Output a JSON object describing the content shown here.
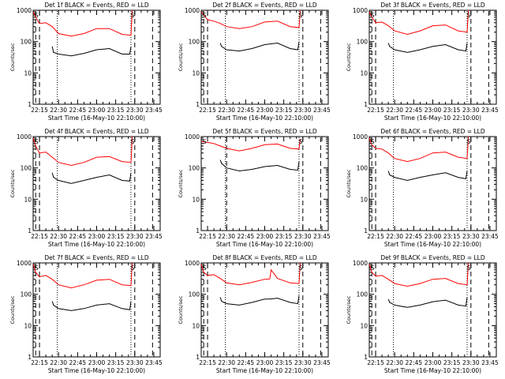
{
  "colors": {
    "background": "#ffffff",
    "axis": "#000000",
    "events": "#000000",
    "lld": "#ff0000"
  },
  "chart_data": [
    {
      "type": "line",
      "title": "Det 1f BLACK = Events, RED = LLD",
      "xlabel": "Start Time (16-May-10 22:10:00)",
      "ylabel": "Counts/sec",
      "x_ticks": [
        "22:15",
        "22:30",
        "22:45",
        "23:00",
        "23:15",
        "23:30",
        "23:45"
      ],
      "y_scale": "log",
      "ylim": [
        1,
        1000
      ],
      "y_ticks": [
        "1",
        "10",
        "100",
        "1000"
      ],
      "xlim": [
        "22:10",
        "23:50"
      ],
      "markers": [
        "S",
        "S"
      ],
      "dashed_lines": [
        "22:12",
        "22:15",
        "23:30",
        "23:44"
      ],
      "dotted_lines": [
        "22:29",
        "23:27"
      ],
      "series": [
        {
          "color": "red",
          "x": [
            "22:10",
            "22:12",
            "22:15",
            "22:20",
            "22:25",
            "22:30",
            "22:40",
            "22:50",
            "23:00",
            "23:10",
            "23:20",
            "23:27",
            "23:28"
          ],
          "y": [
            900,
            600,
            380,
            400,
            300,
            180,
            150,
            180,
            260,
            260,
            170,
            160,
            1000
          ]
        },
        {
          "color": "black",
          "x": [
            "22:25",
            "22:26",
            "22:30",
            "22:40",
            "22:50",
            "23:00",
            "23:10",
            "23:20",
            "23:26",
            "23:27"
          ],
          "y": [
            70,
            45,
            40,
            35,
            42,
            55,
            60,
            40,
            40,
            70
          ]
        }
      ]
    },
    {
      "type": "line",
      "title": "Det 2f BLACK = Events, RED = LLD",
      "xlabel": "Start Time (16-May-10 22:10:00)",
      "ylabel": "Counts/sec",
      "x_ticks": [
        "22:15",
        "22:30",
        "22:45",
        "23:00",
        "23:15",
        "23:30",
        "23:45"
      ],
      "y_scale": "log",
      "ylim": [
        1,
        1000
      ],
      "y_ticks": [
        "1",
        "10",
        "100",
        "1000"
      ],
      "xlim": [
        "22:10",
        "23:50"
      ],
      "markers": [
        "S",
        "S"
      ],
      "dashed_lines": [
        "22:12",
        "22:15",
        "23:30",
        "23:44"
      ],
      "dotted_lines": [
        "22:29",
        "23:27"
      ],
      "series": [
        {
          "color": "red",
          "x": [
            "22:10",
            "22:12",
            "22:15",
            "22:20",
            "22:25",
            "22:30",
            "22:40",
            "22:50",
            "23:00",
            "23:10",
            "23:20",
            "23:27",
            "23:28"
          ],
          "y": [
            900,
            700,
            500,
            450,
            380,
            300,
            260,
            300,
            420,
            450,
            300,
            280,
            1000
          ]
        },
        {
          "color": "black",
          "x": [
            "22:25",
            "22:26",
            "22:30",
            "22:40",
            "22:50",
            "23:00",
            "23:10",
            "23:20",
            "23:26",
            "23:27"
          ],
          "y": [
            90,
            70,
            55,
            50,
            60,
            80,
            90,
            60,
            55,
            100
          ]
        }
      ]
    },
    {
      "type": "line",
      "title": "Det 3f BLACK = Events, RED = LLD",
      "xlabel": "Start Time (16-May-10 22:10:00)",
      "ylabel": "Counts/sec",
      "x_ticks": [
        "22:15",
        "22:30",
        "22:45",
        "23:00",
        "23:15",
        "23:30",
        "23:45"
      ],
      "y_scale": "log",
      "ylim": [
        1,
        1000
      ],
      "y_ticks": [
        "1",
        "10",
        "100",
        "1000"
      ],
      "xlim": [
        "22:10",
        "23:50"
      ],
      "markers": [
        "S",
        "S"
      ],
      "dashed_lines": [
        "22:12",
        "22:15",
        "23:30",
        "23:44"
      ],
      "dotted_lines": [
        "22:29",
        "23:27"
      ],
      "series": [
        {
          "color": "red",
          "x": [
            "22:10",
            "22:12",
            "22:15",
            "22:20",
            "22:25",
            "22:30",
            "22:40",
            "22:50",
            "23:00",
            "23:10",
            "23:20",
            "23:27",
            "23:28"
          ],
          "y": [
            900,
            600,
            400,
            420,
            320,
            220,
            170,
            220,
            320,
            340,
            220,
            200,
            1000
          ]
        },
        {
          "color": "black",
          "x": [
            "22:25",
            "22:26",
            "22:30",
            "22:40",
            "22:50",
            "23:00",
            "23:10",
            "23:20",
            "23:26",
            "23:27"
          ],
          "y": [
            90,
            70,
            55,
            45,
            55,
            70,
            80,
            55,
            50,
            90
          ]
        }
      ]
    },
    {
      "type": "line",
      "title": "Det 4f BLACK = Events, RED = LLD",
      "xlabel": "Start Time (16-May-10 22:10:00)",
      "ylabel": "Counts/sec",
      "x_ticks": [
        "22:15",
        "22:30",
        "22:45",
        "23:00",
        "23:15",
        "23:30",
        "23:45"
      ],
      "y_scale": "log",
      "ylim": [
        1,
        1000
      ],
      "y_ticks": [
        "1",
        "10",
        "100",
        "1000"
      ],
      "xlim": [
        "22:10",
        "23:50"
      ],
      "markers": [
        "S",
        "S"
      ],
      "dashed_lines": [
        "22:12",
        "22:15",
        "23:30",
        "23:44"
      ],
      "dotted_lines": [
        "22:29",
        "23:27"
      ],
      "series": [
        {
          "color": "red",
          "x": [
            "22:10",
            "22:12",
            "22:15",
            "22:20",
            "22:25",
            "22:30",
            "22:40",
            "22:50",
            "23:00",
            "23:10",
            "23:20",
            "23:27",
            "23:28"
          ],
          "y": [
            900,
            500,
            300,
            320,
            220,
            150,
            120,
            150,
            220,
            230,
            160,
            150,
            1000
          ]
        },
        {
          "color": "black",
          "x": [
            "22:25",
            "22:26",
            "22:30",
            "22:40",
            "22:50",
            "23:00",
            "23:10",
            "23:20",
            "23:26",
            "23:27"
          ],
          "y": [
            70,
            50,
            40,
            32,
            40,
            50,
            60,
            40,
            38,
            70
          ]
        }
      ]
    },
    {
      "type": "line",
      "title": "Det 5f BLACK = Events, RED = LLD",
      "xlabel": "Start Time (16-May-10 22:10:00)",
      "ylabel": "Counts/sec",
      "x_ticks": [
        "22:15",
        "22:30",
        "22:45",
        "23:00",
        "23:15",
        "23:30",
        "23:45"
      ],
      "y_scale": "log",
      "ylim": [
        1,
        1000
      ],
      "y_ticks": [
        "1",
        "10",
        "100",
        "1000"
      ],
      "xlim": [
        "22:10",
        "23:50"
      ],
      "markers": [
        "S",
        "S"
      ],
      "dashed_lines": [
        "22:30",
        "23:30",
        "23:44"
      ],
      "dotted_lines": [
        "22:29",
        "23:27"
      ],
      "series": [
        {
          "color": "red",
          "x": [
            "22:10",
            "22:15",
            "22:20",
            "22:25",
            "22:30",
            "22:40",
            "22:50",
            "23:00",
            "23:10",
            "23:20",
            "23:27",
            "23:28"
          ],
          "y": [
            700,
            650,
            600,
            500,
            420,
            350,
            420,
            550,
            580,
            420,
            400,
            800
          ]
        },
        {
          "color": "black",
          "x": [
            "22:25",
            "22:26",
            "22:30",
            "22:40",
            "22:50",
            "23:00",
            "23:10",
            "23:20",
            "23:26",
            "23:27"
          ],
          "y": [
            180,
            140,
            100,
            80,
            90,
            110,
            120,
            90,
            85,
            160
          ]
        }
      ]
    },
    {
      "type": "line",
      "title": "Det 6f BLACK = Events, RED = LLD",
      "xlabel": "Start Time (16-May-10 22:10:00)",
      "ylabel": "Counts/sec",
      "x_ticks": [
        "22:15",
        "22:30",
        "22:45",
        "23:00",
        "23:15",
        "23:30",
        "23:45"
      ],
      "y_scale": "log",
      "ylim": [
        1,
        1000
      ],
      "y_ticks": [
        "1",
        "10",
        "100",
        "1000"
      ],
      "xlim": [
        "22:10",
        "23:50"
      ],
      "markers": [
        "S",
        "S"
      ],
      "dashed_lines": [
        "22:12",
        "22:15",
        "23:30",
        "23:44"
      ],
      "dotted_lines": [
        "22:29",
        "23:27"
      ],
      "series": [
        {
          "color": "red",
          "x": [
            "22:10",
            "22:12",
            "22:15",
            "22:20",
            "22:25",
            "22:30",
            "22:40",
            "22:50",
            "23:00",
            "23:10",
            "23:20",
            "23:27",
            "23:28"
          ],
          "y": [
            900,
            550,
            420,
            400,
            300,
            200,
            160,
            200,
            300,
            320,
            220,
            200,
            1000
          ]
        },
        {
          "color": "black",
          "x": [
            "22:25",
            "22:26",
            "22:30",
            "22:40",
            "22:50",
            "23:00",
            "23:10",
            "23:20",
            "23:26",
            "23:27"
          ],
          "y": [
            80,
            60,
            50,
            40,
            50,
            60,
            70,
            50,
            45,
            80
          ]
        }
      ]
    },
    {
      "type": "line",
      "title": "Det 7f BLACK = Events, RED = LLD",
      "xlabel": "Start Time (16-May-10 22:10:00)",
      "ylabel": "Counts/sec",
      "x_ticks": [
        "22:15",
        "22:30",
        "22:45",
        "23:00",
        "23:15",
        "23:30",
        "23:45"
      ],
      "y_scale": "log",
      "ylim": [
        1,
        1000
      ],
      "y_ticks": [
        "1",
        "10",
        "100",
        "1000"
      ],
      "xlim": [
        "22:10",
        "23:50"
      ],
      "markers": [
        "S",
        "S"
      ],
      "dashed_lines": [
        "22:12",
        "22:15",
        "23:30",
        "23:44"
      ],
      "dotted_lines": [
        "22:29",
        "23:27"
      ],
      "series": [
        {
          "color": "red",
          "x": [
            "22:10",
            "22:12",
            "22:15",
            "22:20",
            "22:25",
            "22:30",
            "22:40",
            "22:50",
            "23:00",
            "23:10",
            "23:20",
            "23:27",
            "23:28"
          ],
          "y": [
            900,
            500,
            360,
            400,
            300,
            200,
            160,
            200,
            280,
            300,
            200,
            190,
            1000
          ]
        },
        {
          "color": "black",
          "x": [
            "22:25",
            "22:26",
            "22:30",
            "22:40",
            "22:50",
            "23:00",
            "23:10",
            "23:20",
            "23:26",
            "23:27"
          ],
          "y": [
            60,
            45,
            35,
            30,
            35,
            45,
            50,
            35,
            32,
            60
          ]
        }
      ]
    },
    {
      "type": "line",
      "title": "Det 8f BLACK = Events, RED = LLD",
      "xlabel": "Start Time (16-May-10 22:10:00)",
      "ylabel": "Counts/sec",
      "x_ticks": [
        "22:15",
        "22:30",
        "22:45",
        "23:00",
        "23:15",
        "23:30",
        "23:45"
      ],
      "y_scale": "log",
      "ylim": [
        1,
        1000
      ],
      "y_ticks": [
        "1",
        "10",
        "100",
        "1000"
      ],
      "xlim": [
        "22:10",
        "23:50"
      ],
      "markers": [
        "S",
        "S"
      ],
      "dashed_lines": [
        "22:12",
        "22:15",
        "23:30",
        "23:44"
      ],
      "dotted_lines": [
        "22:29",
        "23:27"
      ],
      "series": [
        {
          "color": "red",
          "x": [
            "22:10",
            "22:12",
            "22:15",
            "22:20",
            "22:25",
            "22:30",
            "22:40",
            "22:50",
            "23:00",
            "23:04",
            "23:05",
            "23:10",
            "23:20",
            "23:27",
            "23:28"
          ],
          "y": [
            900,
            500,
            400,
            420,
            320,
            230,
            200,
            240,
            300,
            310,
            600,
            320,
            230,
            220,
            1000
          ]
        },
        {
          "color": "black",
          "x": [
            "22:25",
            "22:26",
            "22:30",
            "22:40",
            "22:50",
            "23:00",
            "23:04",
            "23:10",
            "23:20",
            "23:26",
            "23:27"
          ],
          "y": [
            80,
            60,
            50,
            45,
            55,
            70,
            70,
            75,
            55,
            50,
            90
          ]
        }
      ]
    },
    {
      "type": "line",
      "title": "Det 9f BLACK = Events, RED = LLD",
      "xlabel": "Start Time (16-May-10 22:10:00)",
      "ylabel": "Counts/sec",
      "x_ticks": [
        "22:15",
        "22:30",
        "22:45",
        "23:00",
        "23:15",
        "23:30",
        "23:45"
      ],
      "y_scale": "log",
      "ylim": [
        1,
        1000
      ],
      "y_ticks": [
        "1",
        "10",
        "100",
        "1000"
      ],
      "xlim": [
        "22:10",
        "23:50"
      ],
      "markers": [
        "S",
        "S"
      ],
      "dashed_lines": [
        "22:12",
        "22:15",
        "23:30",
        "23:44"
      ],
      "dotted_lines": [
        "22:29",
        "23:27"
      ],
      "series": [
        {
          "color": "red",
          "x": [
            "22:10",
            "22:12",
            "22:15",
            "22:20",
            "22:25",
            "22:30",
            "22:40",
            "22:50",
            "23:00",
            "23:10",
            "23:20",
            "23:27",
            "23:28"
          ],
          "y": [
            900,
            500,
            380,
            400,
            300,
            220,
            180,
            220,
            300,
            320,
            220,
            200,
            1000
          ]
        },
        {
          "color": "black",
          "x": [
            "22:25",
            "22:26",
            "22:30",
            "22:40",
            "22:50",
            "23:00",
            "23:10",
            "23:20",
            "23:26",
            "23:27"
          ],
          "y": [
            70,
            55,
            45,
            38,
            45,
            58,
            65,
            45,
            42,
            80
          ]
        }
      ]
    }
  ]
}
